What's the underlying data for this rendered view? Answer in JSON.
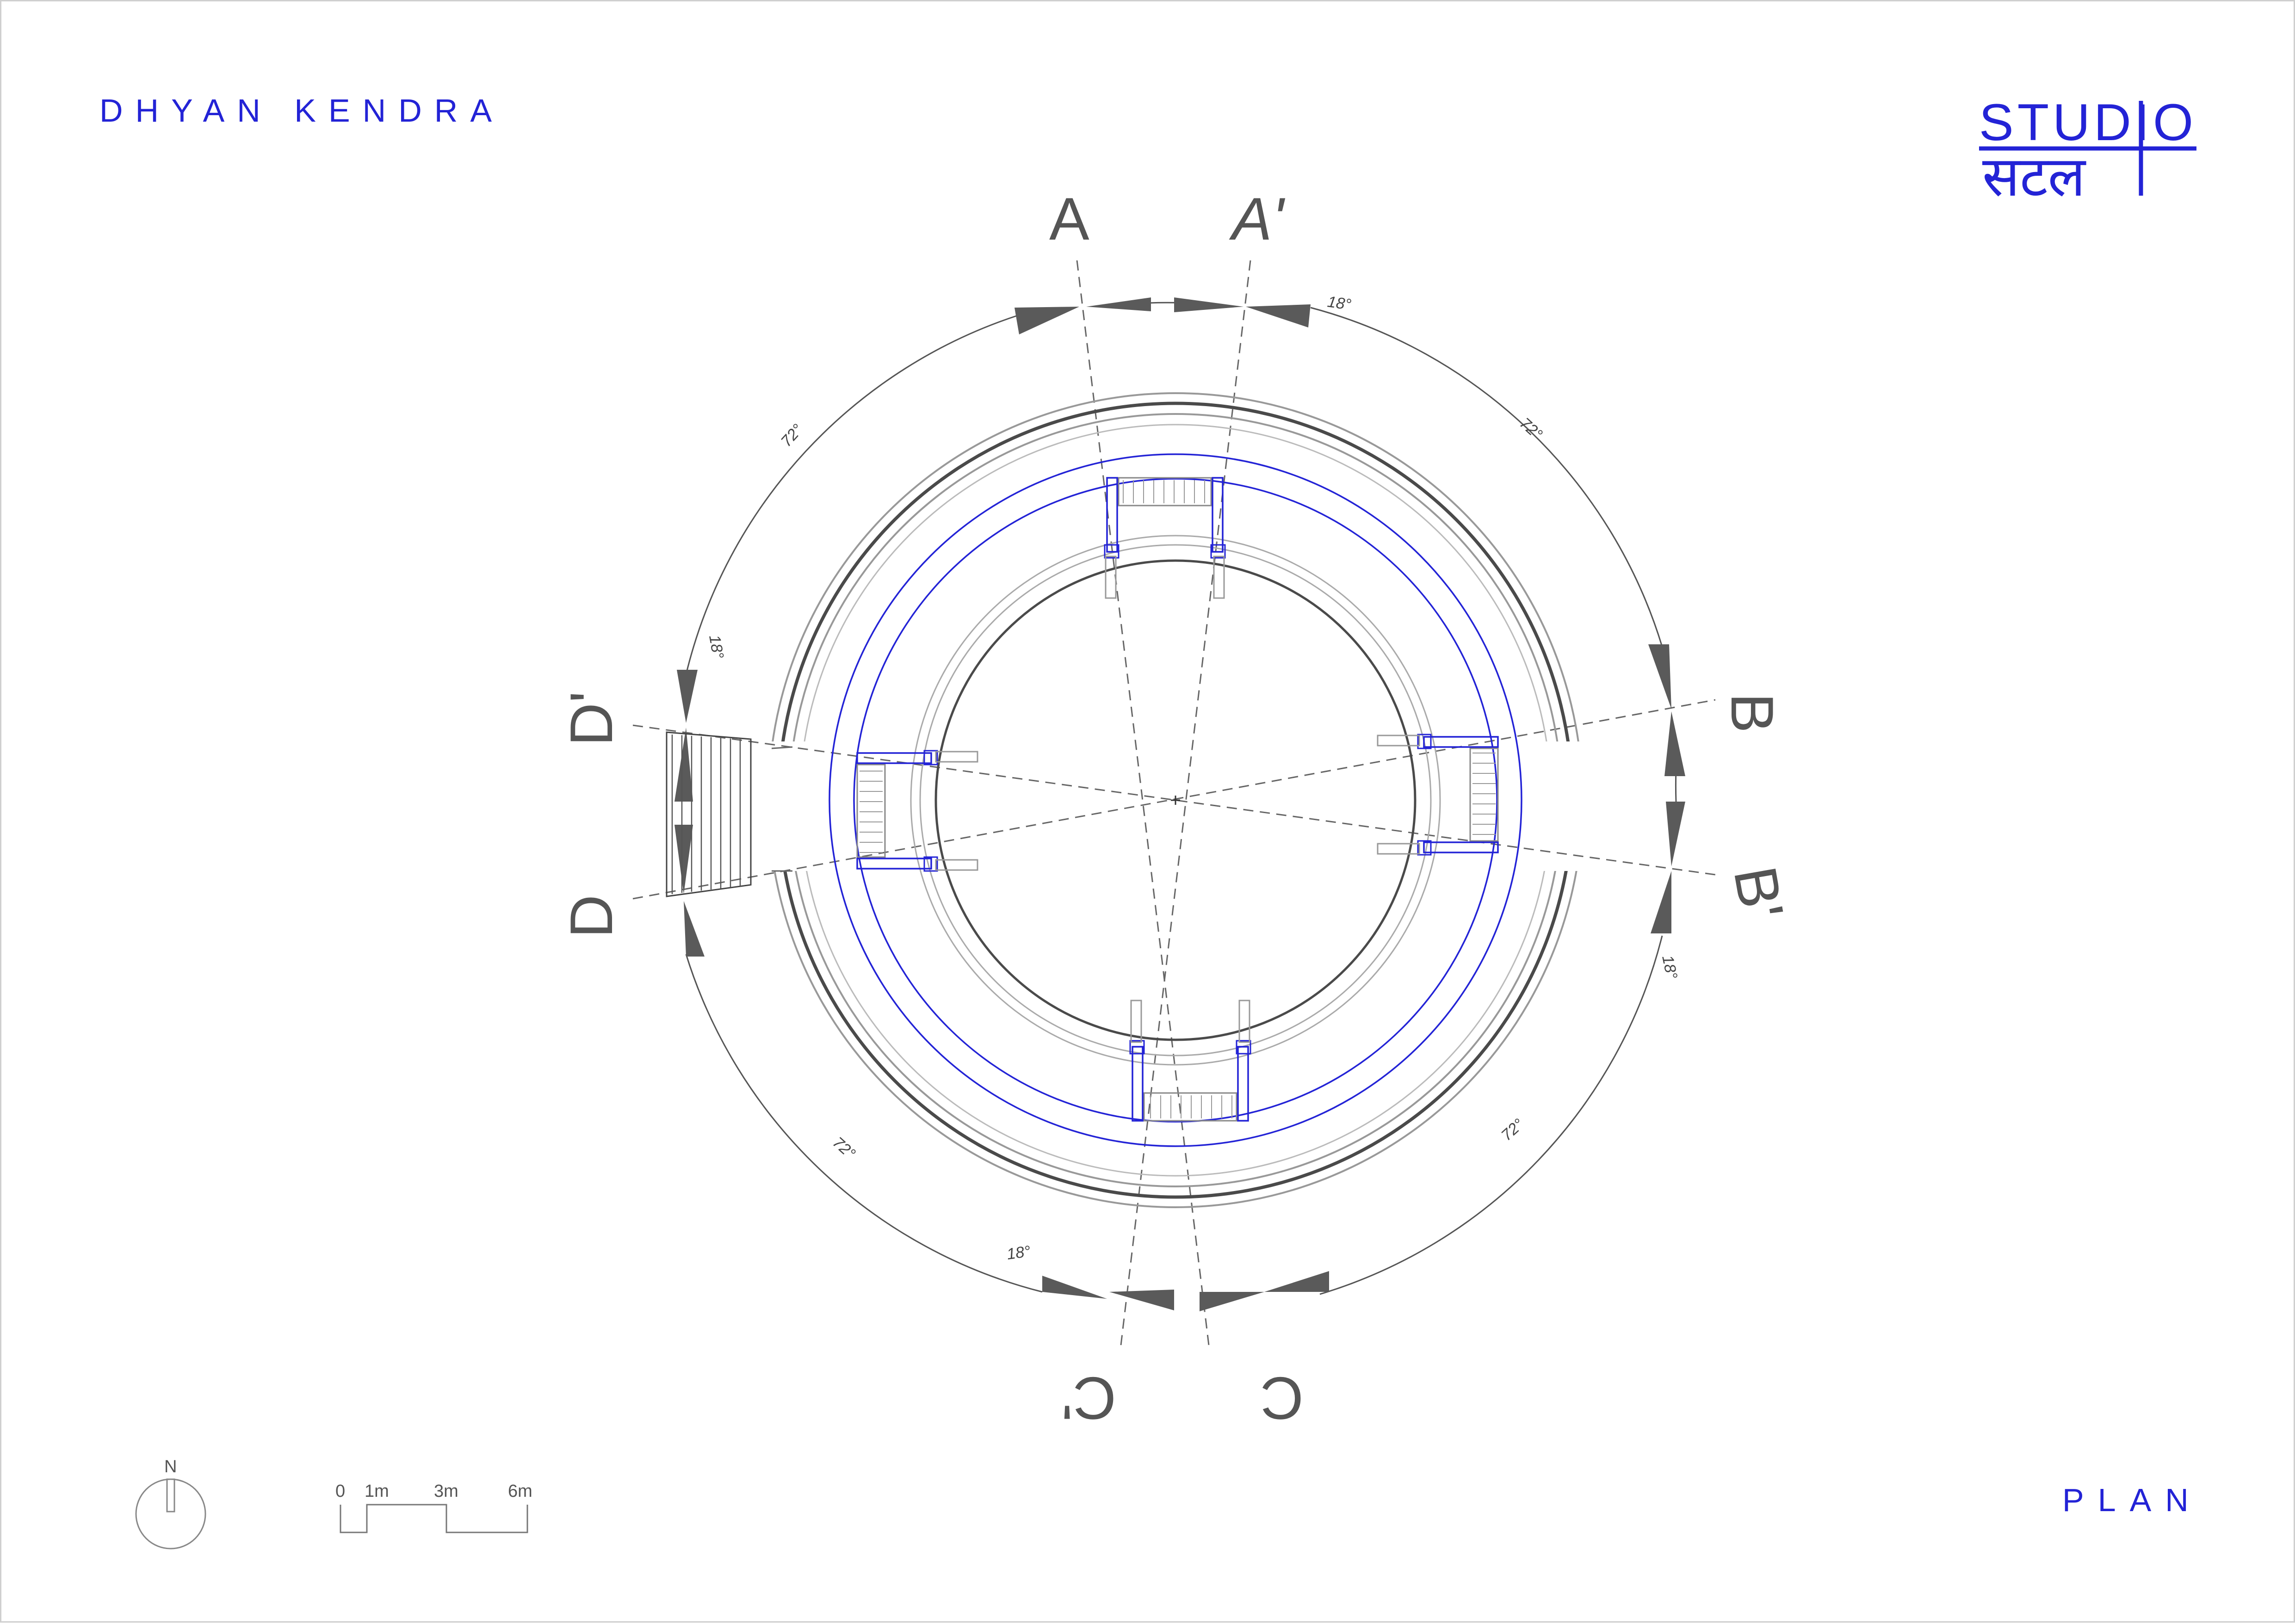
{
  "header": {
    "project_title": "DHYAN KENDRA",
    "logo": {
      "latin": "STUDIO",
      "devanagari": "सटल",
      "color": "#2323d6"
    }
  },
  "footer": {
    "sheet_label": "PLAN",
    "north_label": "N",
    "scale_bar": {
      "ticks": [
        "0",
        "1m",
        "3m",
        "6m"
      ]
    }
  },
  "section_markers": {
    "A": "A",
    "A_prime": "A'",
    "B": "B",
    "B_prime": "B'",
    "C": "C",
    "C_prime": "C'",
    "D": "D",
    "D_prime": "D'"
  },
  "angle_labels": {
    "top_18": "18°",
    "top_right_72": "72°",
    "right_18": "18°",
    "bottom_right_72": "72°",
    "bottom_18": "18°",
    "bottom_left_72": "72°",
    "left_18": "18°",
    "top_left_72": "72°"
  },
  "colors": {
    "accent_blue": "#2323d6",
    "line_gray": "#555555",
    "arrow_gray": "#5a5a5a"
  }
}
